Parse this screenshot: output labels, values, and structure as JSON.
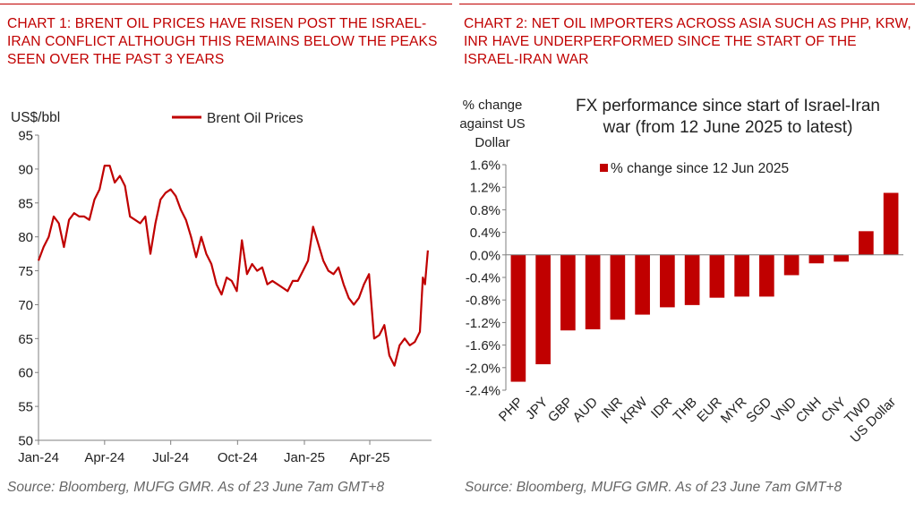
{
  "colors": {
    "accent": "#c00000",
    "bar": "#c00000",
    "line": "#c00000",
    "source_text": "#666666"
  },
  "chart1": {
    "title": "CHART 1: BRENT OIL PRICES HAVE RISEN POST THE ISRAEL-IRAN CONFLICT ALTHOUGH THIS REMAINS BELOW THE PEAKS SEEN OVER THE PAST 3 YEARS",
    "source": "Source: Bloomberg, MUFG GMR. As of 23 June 7am GMT+8"
  },
  "chart2": {
    "title": "CHART 2: NET OIL IMPORTERS ACROSS ASIA SUCH AS PHP, KRW, INR HAVE UNDERPERFORMED SINCE THE START OF THE ISRAEL-IRAN WAR",
    "source": "Source: Bloomberg, MUFG GMR. As of 23 June 7am GMT+8"
  },
  "chart_data": [
    {
      "type": "line",
      "title": "",
      "ylabel": "US$/bbl",
      "xlabel": "",
      "ylim": [
        50,
        95
      ],
      "yticks": [
        "95",
        "90",
        "85",
        "80",
        "75",
        "70",
        "65",
        "60",
        "55",
        "50"
      ],
      "xticks": [
        "Jan-24",
        "Apr-24",
        "Jul-24",
        "Oct-24",
        "Jan-25",
        "Apr-25"
      ],
      "legend": "top-center",
      "grid": false,
      "series": [
        {
          "name": "Brent Oil Prices",
          "x": [
            "2024-01-01",
            "2024-01-08",
            "2024-01-15",
            "2024-01-22",
            "2024-01-29",
            "2024-02-05",
            "2024-02-12",
            "2024-02-19",
            "2024-02-26",
            "2024-03-04",
            "2024-03-11",
            "2024-03-18",
            "2024-03-25",
            "2024-04-01",
            "2024-04-08",
            "2024-04-15",
            "2024-04-22",
            "2024-04-29",
            "2024-05-06",
            "2024-05-13",
            "2024-05-20",
            "2024-05-27",
            "2024-06-03",
            "2024-06-10",
            "2024-06-17",
            "2024-06-24",
            "2024-07-01",
            "2024-07-08",
            "2024-07-15",
            "2024-07-22",
            "2024-07-29",
            "2024-08-05",
            "2024-08-12",
            "2024-08-19",
            "2024-08-26",
            "2024-09-02",
            "2024-09-09",
            "2024-09-16",
            "2024-09-23",
            "2024-09-30",
            "2024-10-07",
            "2024-10-14",
            "2024-10-21",
            "2024-10-28",
            "2024-11-04",
            "2024-11-11",
            "2024-11-18",
            "2024-11-25",
            "2024-12-02",
            "2024-12-09",
            "2024-12-16",
            "2024-12-23",
            "2024-12-30",
            "2025-01-06",
            "2025-01-13",
            "2025-01-20",
            "2025-01-27",
            "2025-02-03",
            "2025-02-10",
            "2025-02-17",
            "2025-02-24",
            "2025-03-03",
            "2025-03-10",
            "2025-03-17",
            "2025-03-24",
            "2025-03-31",
            "2025-04-07",
            "2025-04-14",
            "2025-04-21",
            "2025-04-28",
            "2025-05-05",
            "2025-05-12",
            "2025-05-19",
            "2025-05-26",
            "2025-06-02",
            "2025-06-09",
            "2025-06-13",
            "2025-06-16",
            "2025-06-20"
          ],
          "values": [
            76.5,
            78.5,
            80,
            83,
            82,
            78.5,
            82.5,
            83.5,
            83,
            83,
            82.5,
            85.5,
            87,
            90.5,
            90.5,
            88,
            89,
            87.5,
            83,
            82.5,
            82,
            83,
            77.5,
            82,
            85.5,
            86.5,
            87,
            86,
            84,
            82.5,
            80,
            77,
            80,
            77.5,
            76,
            73,
            71.5,
            74,
            73.5,
            72,
            79.5,
            74.5,
            76,
            75,
            75.5,
            73,
            73.5,
            73,
            72.5,
            72,
            73.5,
            73.5,
            75,
            76.5,
            81.5,
            79,
            76.5,
            75,
            74.5,
            75.5,
            73,
            71,
            70,
            71,
            73,
            74.5,
            65,
            65.5,
            67,
            62.5,
            61,
            64,
            65,
            64,
            64.5,
            66,
            74,
            73,
            78
          ]
        }
      ]
    },
    {
      "type": "bar",
      "title": "FX performance since start of Israel-Iran war (from 12 June 2025 to latest)",
      "title_lines": [
        "FX performance since start of Israel-Iran",
        "war (from 12 June 2025 to latest)"
      ],
      "ylabel": "% change against US Dollar",
      "ylabel_lines": [
        "% change",
        "against US",
        "Dollar"
      ],
      "xlabel": "",
      "ylim": [
        -2.4,
        1.6
      ],
      "yticks": [
        "1.6%",
        "1.2%",
        "0.8%",
        "0.4%",
        "0.0%",
        "-0.4%",
        "-0.8%",
        "-1.2%",
        "-1.6%",
        "-2.0%",
        "-2.4%"
      ],
      "legend": "top-center",
      "grid": false,
      "categories": [
        "PHP",
        "JPY",
        "GBP",
        "AUD",
        "INR",
        "KRW",
        "IDR",
        "THB",
        "EUR",
        "MYR",
        "SGD",
        "VND",
        "CNH",
        "CNY",
        "TWD",
        "US Dollar"
      ],
      "series": [
        {
          "name": "% change since 12 Jun 2025",
          "values": [
            -2.25,
            -1.94,
            -1.34,
            -1.32,
            -1.15,
            -1.06,
            -0.93,
            -0.89,
            -0.76,
            -0.74,
            -0.74,
            -0.36,
            -0.15,
            -0.12,
            0.42,
            1.1
          ]
        }
      ]
    }
  ]
}
